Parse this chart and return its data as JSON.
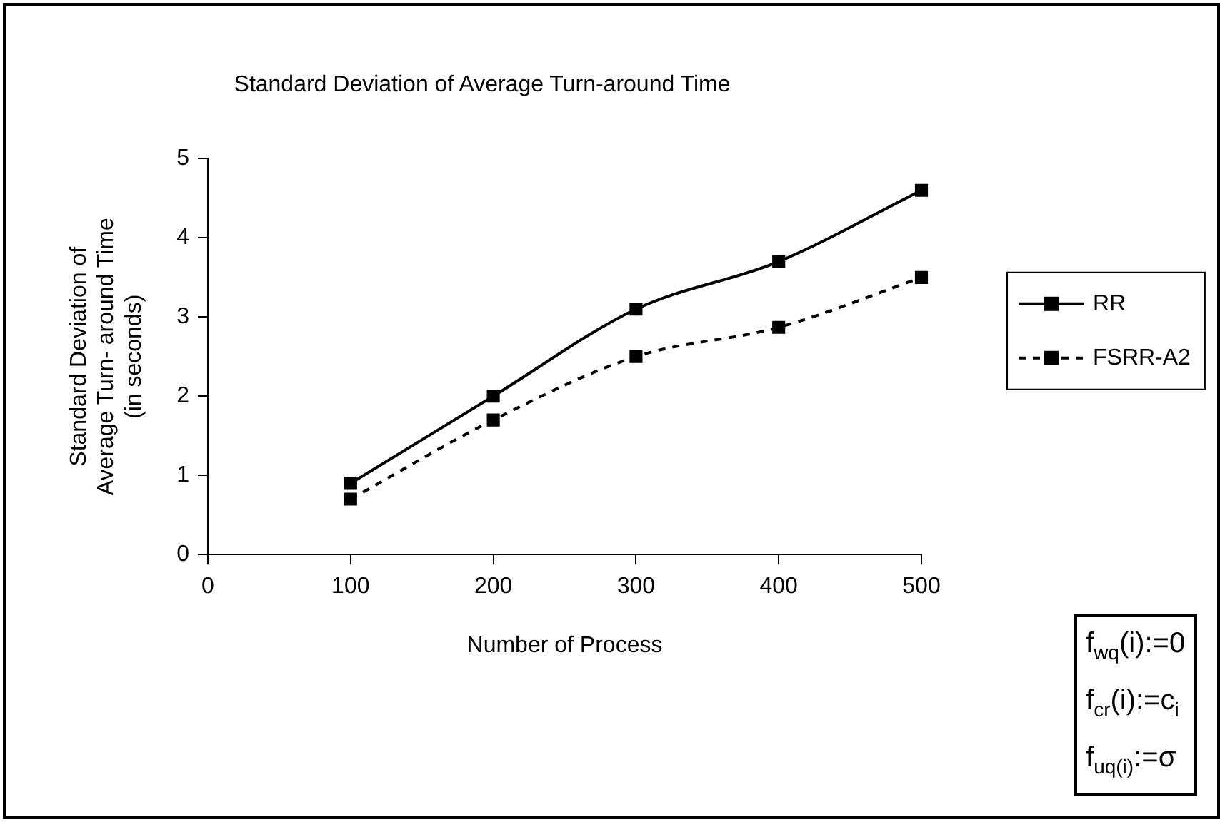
{
  "chart_data": {
    "type": "line",
    "title": "Standard Deviation of Average Turn-around Time",
    "xlabel": "Number of Process",
    "ylabel": "Standard Deviation of Average Turn- around Time (in seconds)",
    "x": [
      100,
      200,
      300,
      400,
      500
    ],
    "series": [
      {
        "name": "RR",
        "color": "#000000",
        "values": [
          0.9,
          2.0,
          3.1,
          3.7,
          4.6
        ],
        "line_style": "solid"
      },
      {
        "name": "FSRR-A2",
        "color": "#000000",
        "values": [
          0.7,
          1.7,
          2.5,
          2.87,
          3.5
        ],
        "line_style": "dashed"
      }
    ],
    "xlim": [
      0,
      500
    ],
    "xticks": [
      0,
      100,
      200,
      300,
      400,
      500
    ],
    "ylim": [
      0,
      5
    ],
    "yticks": [
      0,
      1,
      2,
      3,
      4,
      5
    ],
    "grid": false,
    "legend": "right",
    "marker": "square",
    "annotations": [
      "f$_{wq}$(i):=0",
      "f$_{cr}$(i):=c$_{i}$",
      "f$_{uq(i)}$:=σ"
    ]
  }
}
